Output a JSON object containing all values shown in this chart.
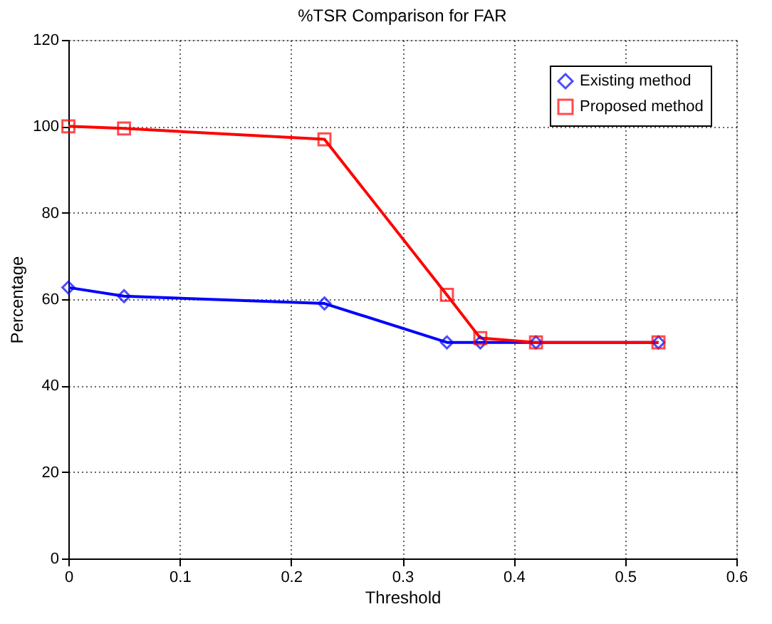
{
  "chart_data": {
    "type": "line",
    "title": "%TSR Comparison for FAR",
    "xlabel": "Threshold",
    "ylabel": "Percentage",
    "xlim": [
      0,
      0.6
    ],
    "xticks": [
      0,
      0.1,
      0.2,
      0.3,
      0.4,
      0.5,
      0.6
    ],
    "ylim": [
      0,
      120
    ],
    "yticks": [
      0,
      20,
      40,
      60,
      80,
      100,
      120
    ],
    "grid": true,
    "legend": "top right",
    "line_style": "solid",
    "series": [
      {
        "name": "Existing method",
        "color": "#0000ff",
        "marker": "diamond",
        "x": [
          0,
          0.05,
          0.23,
          0.34,
          0.37,
          0.42,
          0.53
        ],
        "values": [
          62.7,
          60.7,
          59,
          50,
          50,
          50,
          50
        ]
      },
      {
        "name": "Proposed method",
        "color": "#ff0000",
        "marker": "square",
        "x": [
          0,
          0.05,
          0.23,
          0.34,
          0.37,
          0.42,
          0.53
        ],
        "values": [
          100,
          99.5,
          97,
          61,
          51,
          50,
          50
        ]
      }
    ]
  }
}
